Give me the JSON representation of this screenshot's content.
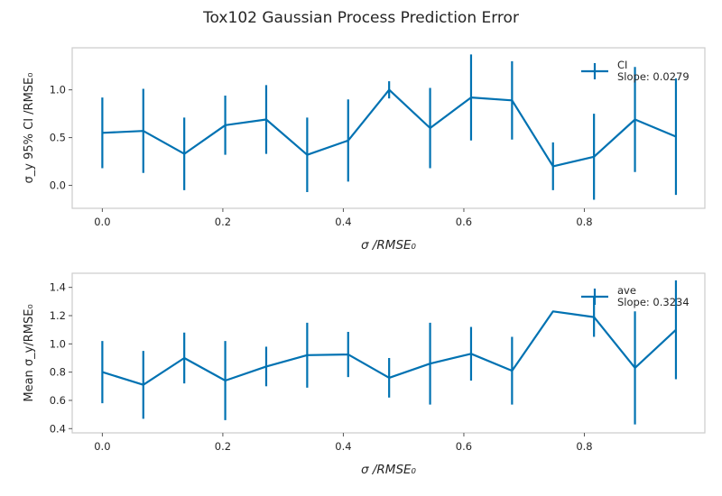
{
  "figure": {
    "title": "Tox102 Gaussian Process Prediction Error"
  },
  "chart_data": [
    {
      "type": "line",
      "error_bars": true,
      "xlabel": "σ /RMSE₀",
      "ylabel": "σ_y 95% CI /RMSE₀",
      "xlim": [
        -0.05,
        1.0
      ],
      "ylim": [
        -0.24,
        1.44
      ],
      "xticks": [
        "0.0",
        "0.2",
        "0.4",
        "0.6",
        "0.8"
      ],
      "yticks": [
        "0.0",
        "0.5",
        "1.0"
      ],
      "grid": false,
      "legend_position": "top-right",
      "legend": [
        "CI",
        "Slope: 0.0279"
      ],
      "color": "#0072b2",
      "x": [
        0.0,
        0.068,
        0.136,
        0.204,
        0.272,
        0.34,
        0.408,
        0.476,
        0.544,
        0.612,
        0.68,
        0.748,
        0.816,
        0.884,
        0.952
      ],
      "y": [
        0.55,
        0.57,
        0.33,
        0.63,
        0.69,
        0.32,
        0.47,
        1.0,
        0.6,
        0.92,
        0.89,
        0.2,
        0.3,
        0.69,
        0.51
      ],
      "err": [
        0.37,
        0.44,
        0.38,
        0.31,
        0.36,
        0.39,
        0.43,
        0.09,
        0.42,
        0.45,
        0.41,
        0.25,
        0.45,
        0.55,
        0.61
      ]
    },
    {
      "type": "line",
      "error_bars": true,
      "xlabel": "σ /RMSE₀",
      "ylabel": "Mean σ_y/RMSE₀",
      "xlim": [
        -0.05,
        1.0
      ],
      "ylim": [
        0.37,
        1.5
      ],
      "xticks": [
        "0.0",
        "0.2",
        "0.4",
        "0.6",
        "0.8"
      ],
      "yticks": [
        "0.4",
        "0.6",
        "0.8",
        "1.0",
        "1.2",
        "1.4"
      ],
      "grid": false,
      "legend_position": "top-right",
      "legend": [
        "ave",
        "Slope: 0.3234"
      ],
      "color": "#0072b2",
      "x": [
        0.0,
        0.068,
        0.136,
        0.204,
        0.272,
        0.34,
        0.408,
        0.476,
        0.544,
        0.612,
        0.68,
        0.748,
        0.816,
        0.884,
        0.952
      ],
      "y": [
        0.8,
        0.71,
        0.9,
        0.74,
        0.84,
        0.92,
        0.925,
        0.76,
        0.86,
        0.93,
        0.81,
        1.23,
        1.19,
        0.83,
        1.1
      ],
      "err": [
        0.22,
        0.24,
        0.18,
        0.28,
        0.14,
        0.23,
        0.16,
        0.14,
        0.29,
        0.19,
        0.24,
        0.0,
        0.14,
        0.4,
        0.35
      ]
    }
  ]
}
